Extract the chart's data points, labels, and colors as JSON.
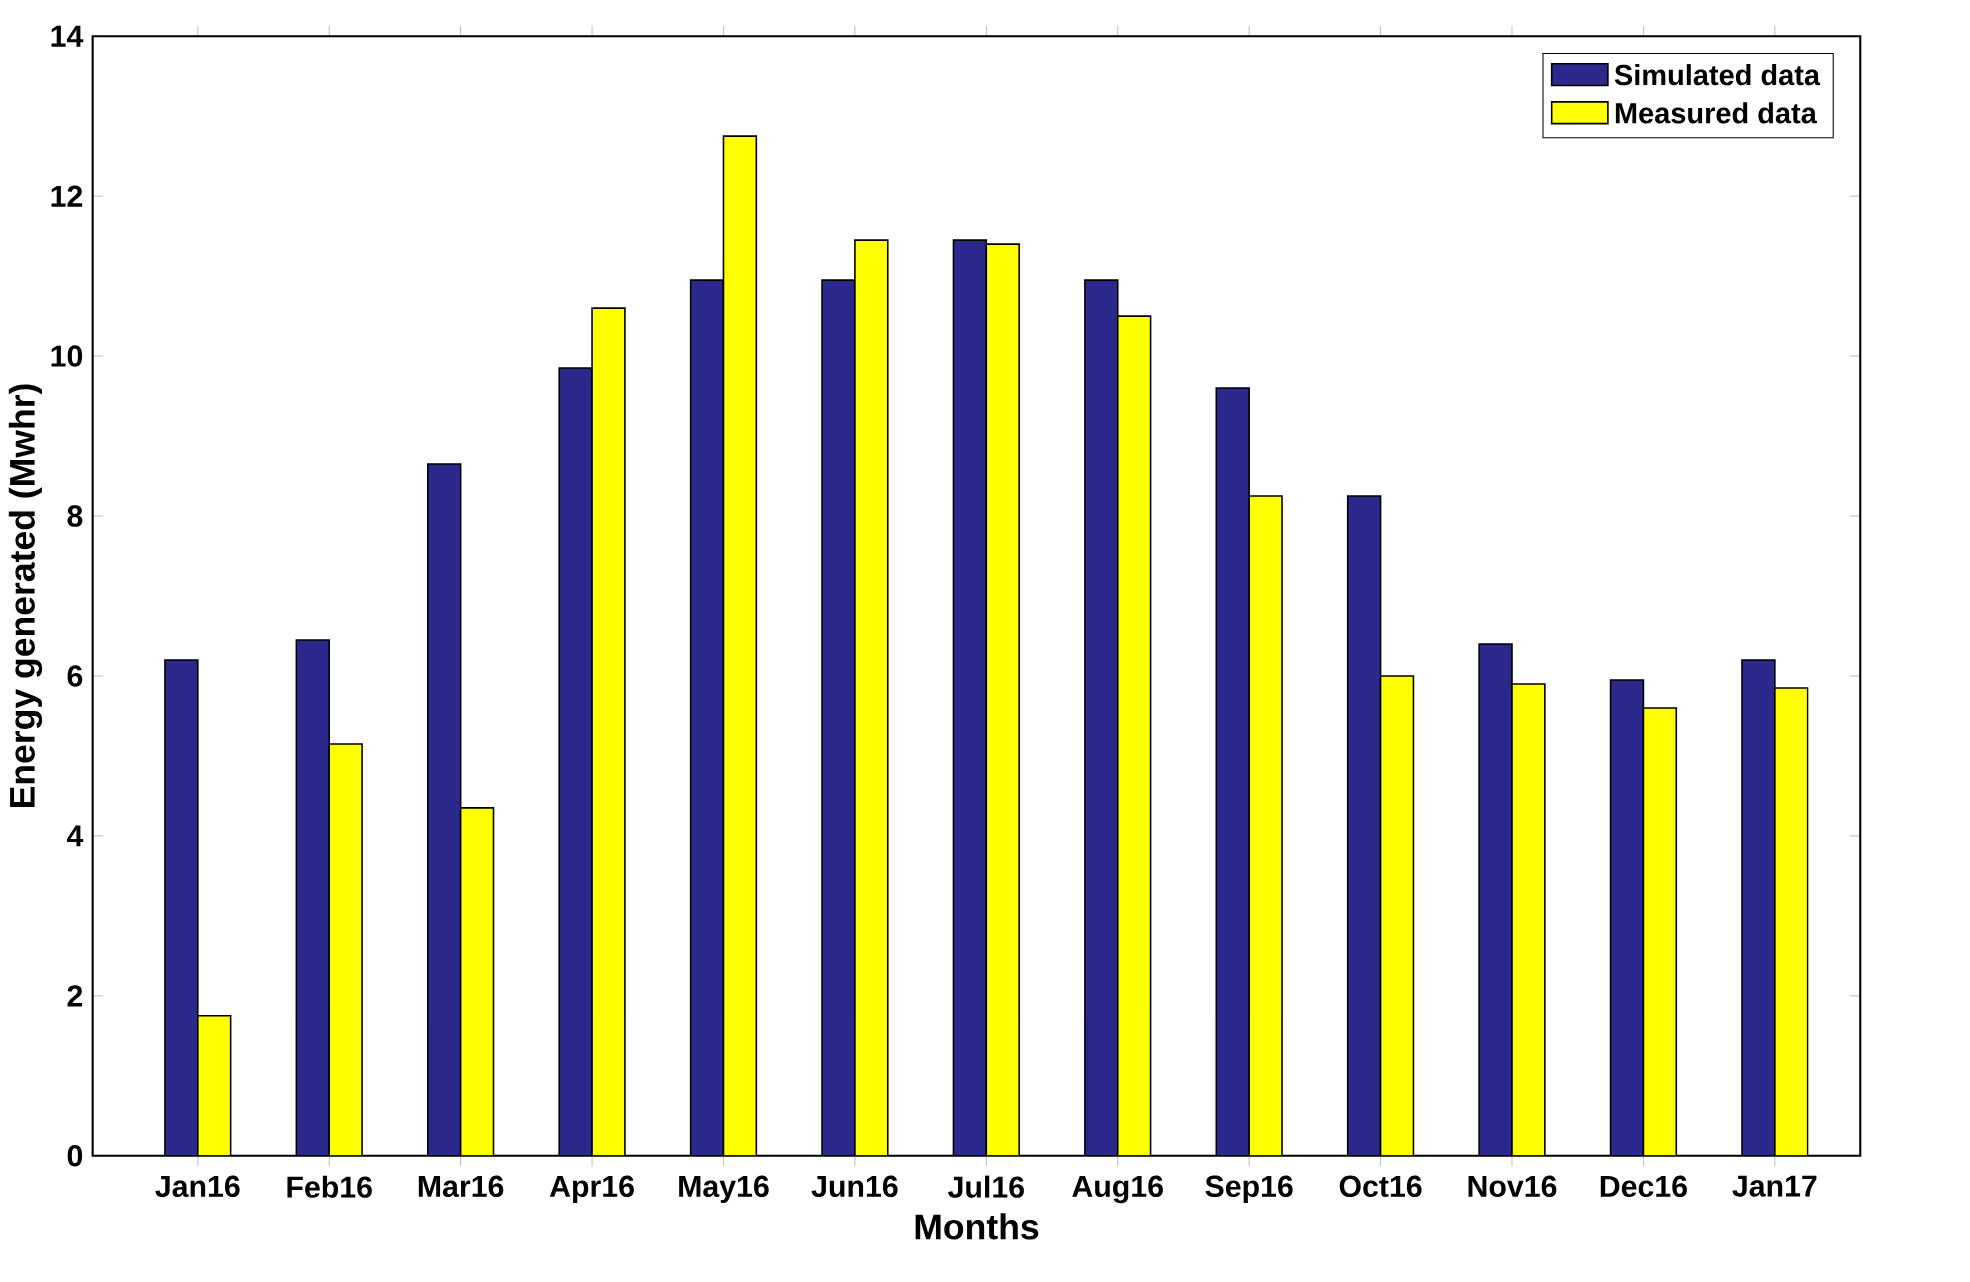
{
  "chart_data": {
    "type": "bar",
    "xlabel": "Months",
    "ylabel": "Energy generated (Mwhr)",
    "categories": [
      "Jan16",
      "Feb16",
      "Mar16",
      "Apr16",
      "May16",
      "Jun16",
      "Jul16",
      "Aug16",
      "Sep16",
      "Oct16",
      "Nov16",
      "Dec16",
      "Jan17"
    ],
    "series": [
      {
        "name": "Simulated data",
        "color": "#2b2a8c",
        "values": [
          6.2,
          6.45,
          8.65,
          9.85,
          10.95,
          10.95,
          11.45,
          10.95,
          9.6,
          8.25,
          6.4,
          5.95,
          6.2
        ]
      },
      {
        "name": "Measured data",
        "color": "#ffff00",
        "values": [
          1.75,
          5.15,
          4.35,
          10.6,
          12.75,
          11.45,
          11.4,
          10.5,
          8.25,
          6.0,
          5.9,
          5.6,
          5.85
        ]
      }
    ],
    "ylim": [
      0,
      14
    ],
    "yticks": [
      0,
      2,
      4,
      6,
      8,
      10,
      12,
      14
    ],
    "legend": "top right"
  }
}
